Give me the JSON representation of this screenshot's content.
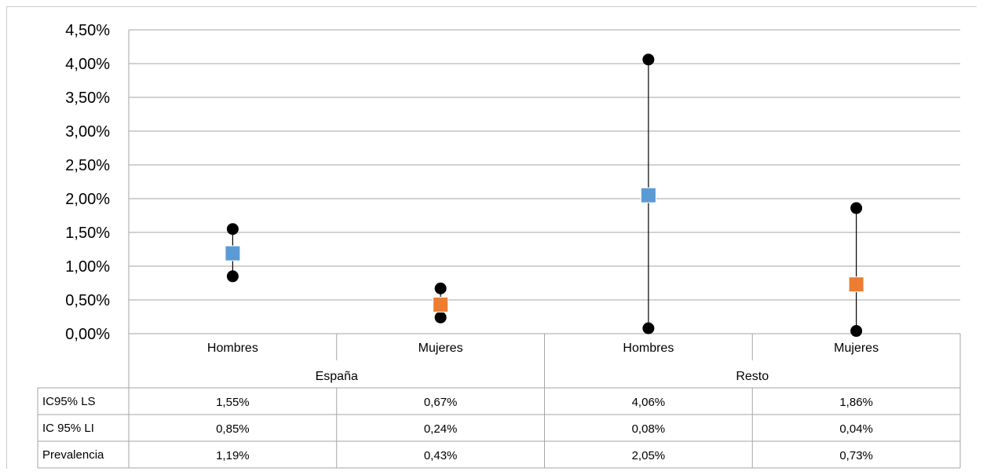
{
  "chart_data": {
    "type": "scatter",
    "title": "",
    "xlabel": "",
    "ylabel": "",
    "ylim": [
      0,
      0.045
    ],
    "y_tick_values": [
      0,
      0.005,
      0.01,
      0.015,
      0.02,
      0.025,
      0.03,
      0.035,
      0.04,
      0.045
    ],
    "y_tick_labels": [
      "0,00%",
      "0,50%",
      "1,00%",
      "1,50%",
      "2,00%",
      "2,50%",
      "3,00%",
      "3,50%",
      "4,00%",
      "4,50%"
    ],
    "grid": true,
    "categories": [
      "Hombres",
      "Mujeres",
      "Hombres",
      "Mujeres"
    ],
    "groups": [
      {
        "label": "España",
        "span": 2
      },
      {
        "label": "Resto",
        "span": 2
      }
    ],
    "series": [
      {
        "name": "IC95% LS",
        "values": [
          0.0155,
          0.0067,
          0.0406,
          0.0186
        ],
        "value_labels": [
          "1,55%",
          "0,67%",
          "4,06%",
          "1,86%"
        ],
        "marker": "circle",
        "color": "#000000"
      },
      {
        "name": "IC 95% LI",
        "values": [
          0.0085,
          0.0024,
          0.0008,
          0.0004
        ],
        "value_labels": [
          "0,85%",
          "0,24%",
          "0,08%",
          "0,04%"
        ],
        "marker": "circle",
        "color": "#000000"
      },
      {
        "name": "Prevalencia",
        "values": [
          0.0119,
          0.0043,
          0.0205,
          0.0073
        ],
        "value_labels": [
          "1,19%",
          "0,43%",
          "2,05%",
          "0,73%"
        ],
        "marker": "square",
        "point_colors": [
          "#5b9bd5",
          "#ed7d31",
          "#5b9bd5",
          "#ed7d31"
        ]
      }
    ],
    "error_bars": {
      "color": "#000000"
    },
    "data_table": true,
    "legend": "none"
  }
}
